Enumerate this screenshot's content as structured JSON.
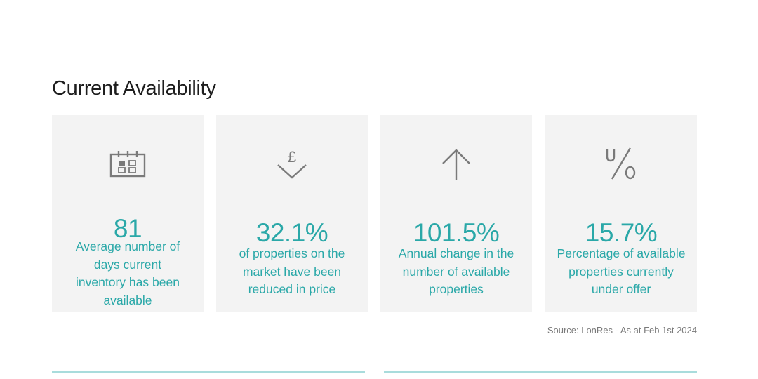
{
  "section": {
    "title": "Current Availability"
  },
  "cards": [
    {
      "icon": "calendar-icon",
      "value": "81",
      "description": "Average number of days current inventory has been available"
    },
    {
      "icon": "pound-down-arrow-icon",
      "value": "32.1%",
      "description": "of properties on the market have been reduced in price"
    },
    {
      "icon": "up-arrow-icon",
      "value": "101.5%",
      "description": "Annual change in the number of available properties"
    },
    {
      "icon": "percent-icon",
      "value": "15.7%",
      "description": "Percentage of available properties currently under offer"
    }
  ],
  "source": "Source: LonRes - As at Feb 1st 2024",
  "colors": {
    "accent": "#2aa8a8",
    "card_background": "#f3f3f3",
    "icon": "#7a7a7a",
    "divider": "#a9dcdc"
  }
}
